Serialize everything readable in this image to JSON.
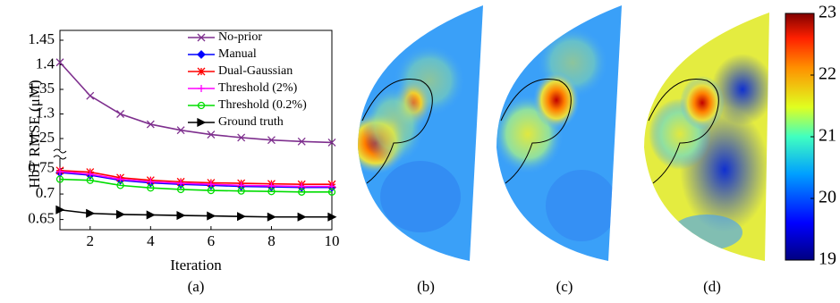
{
  "chart_data": [
    {
      "type": "line",
      "x_label": "Iteration",
      "y_label": "HbT RMSE (μM)",
      "x": [
        1,
        2,
        3,
        4,
        5,
        6,
        7,
        8,
        9,
        10
      ],
      "xlim": [
        1,
        10
      ],
      "xticks": [
        2,
        4,
        6,
        8,
        10
      ],
      "ylim": [
        0.63,
        0.765
      ],
      "ylim_upper": [
        1.23,
        1.47
      ],
      "yticks": [
        0.65,
        0.7,
        0.75,
        1.25,
        1.3,
        1.35,
        1.4,
        1.45
      ],
      "legend": "top-right",
      "series": [
        {
          "name": "No-prior",
          "color": "#7e2f8e",
          "marker": "x",
          "values": [
            1.405,
            1.337,
            1.3,
            1.279,
            1.267,
            1.258,
            1.252,
            1.247,
            1.244,
            1.242
          ]
        },
        {
          "name": "Manual",
          "color": "#0000ff",
          "marker": "diamond",
          "values": [
            0.742,
            0.737,
            0.727,
            0.722,
            0.719,
            0.717,
            0.715,
            0.714,
            0.713,
            0.713
          ]
        },
        {
          "name": "Dual-Gaussian",
          "color": "#ff0000",
          "marker": "asterisk",
          "values": [
            0.746,
            0.743,
            0.732,
            0.727,
            0.724,
            0.722,
            0.721,
            0.72,
            0.719,
            0.719
          ]
        },
        {
          "name": "Threshold (2%)",
          "color": "#ff00ff",
          "marker": "plus",
          "values": [
            0.744,
            0.739,
            0.729,
            0.724,
            0.721,
            0.719,
            0.717,
            0.716,
            0.715,
            0.715
          ]
        },
        {
          "name": "Threshold (0.2%)",
          "color": "#00dd00",
          "marker": "circle",
          "values": [
            0.729,
            0.727,
            0.717,
            0.712,
            0.709,
            0.707,
            0.706,
            0.705,
            0.704,
            0.704
          ]
        },
        {
          "name": "Ground truth",
          "color": "#000000",
          "marker": "triangle-right",
          "values": [
            0.669,
            0.662,
            0.66,
            0.659,
            0.658,
            0.657,
            0.656,
            0.655,
            0.655,
            0.655
          ]
        }
      ]
    },
    {
      "type": "colorbar",
      "ylim": [
        19,
        23
      ],
      "yticks": [
        19,
        20,
        21,
        22,
        23
      ]
    }
  ],
  "panel_labels": [
    "(a)",
    "(b)",
    "(c)",
    "(d)"
  ]
}
